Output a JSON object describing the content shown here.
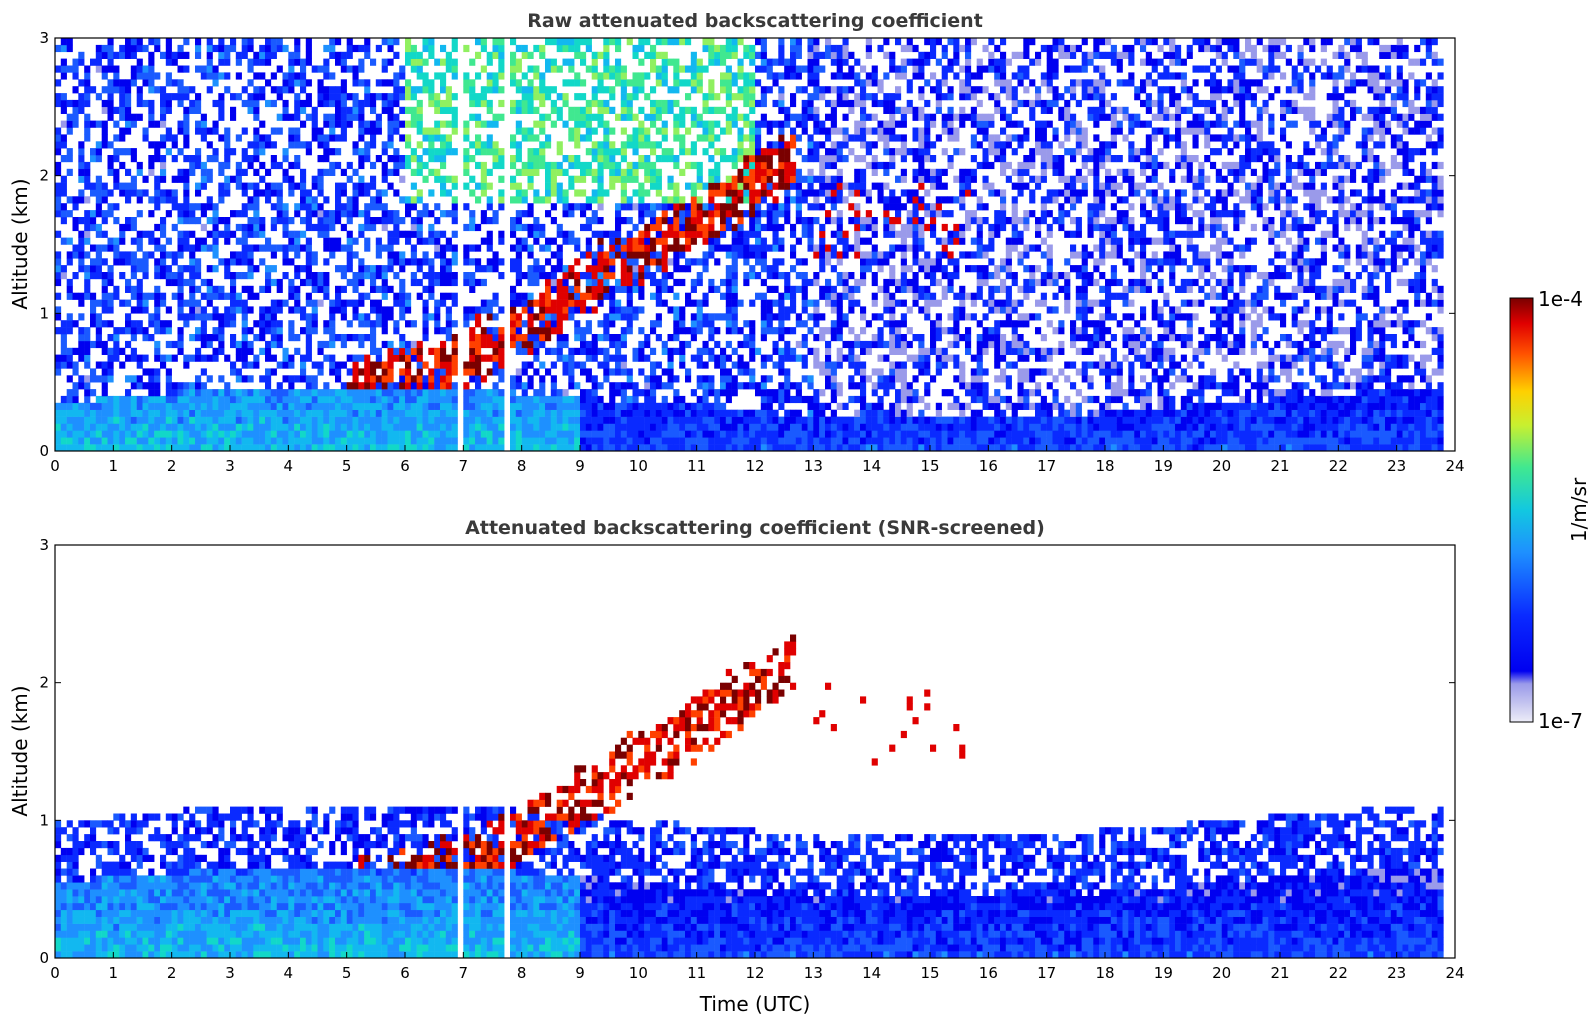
{
  "chart_data": [
    {
      "type": "heatmap",
      "title": "Raw attenuated backscattering coefficient",
      "xlabel": "",
      "ylabel": "Altitude (km)",
      "xlim": [
        0,
        24
      ],
      "ylim": [
        0,
        3
      ],
      "x_ticks": [
        "0",
        "1",
        "2",
        "3",
        "4",
        "5",
        "6",
        "7",
        "8",
        "9",
        "10",
        "11",
        "12",
        "13",
        "14",
        "15",
        "16",
        "17",
        "18",
        "19",
        "20",
        "21",
        "22",
        "23",
        "24"
      ],
      "y_ticks": [
        "0",
        "1",
        "2",
        "3"
      ],
      "data_gaps_hours": [
        [
          6.93,
          7.0
        ],
        [
          7.67,
          7.77
        ]
      ],
      "data_end_hour": 23.8,
      "colormap": "jet",
      "log_scale": true,
      "features": [
        {
          "name": "boundary layer",
          "description": "high backscatter below ~0.5 km all day"
        },
        {
          "name": "aerosol/cloud layer",
          "x_range": [
            5,
            12.7
          ],
          "altitude_km": [
            0.4,
            2.4
          ]
        },
        {
          "name": "elevated cloud specks",
          "x_range": [
            13,
            15.7
          ],
          "altitude_km": [
            1.4,
            2.0
          ]
        }
      ],
      "grid": false
    },
    {
      "type": "heatmap",
      "title": "Attenuated backscattering coefficient (SNR-screened)",
      "xlabel": "Time (UTC)",
      "ylabel": "Altitude (km)",
      "xlim": [
        0,
        24
      ],
      "ylim": [
        0,
        3
      ],
      "x_ticks": [
        "0",
        "1",
        "2",
        "3",
        "4",
        "5",
        "6",
        "7",
        "8",
        "9",
        "10",
        "11",
        "12",
        "13",
        "14",
        "15",
        "16",
        "17",
        "18",
        "19",
        "20",
        "21",
        "22",
        "23",
        "24"
      ],
      "y_ticks": [
        "0",
        "1",
        "2",
        "3"
      ],
      "data_gaps_hours": [
        [
          6.93,
          7.0
        ],
        [
          7.67,
          7.77
        ]
      ],
      "data_end_hour": 23.8,
      "colormap": "jet",
      "log_scale": true,
      "grid": false
    }
  ],
  "colorbar": {
    "max_label": "1e-4",
    "min_label": "1e-7",
    "unit_label": "1/m/sr",
    "colors": [
      "#ededf8",
      "#d4d4f2",
      "#b8b8ee",
      "#9a9aea",
      "#0000f0",
      "#0a2aff",
      "#1a5aff",
      "#1e90ff",
      "#12b8f0",
      "#12d8c8",
      "#40e890",
      "#90f060",
      "#e0f020",
      "#ffd000",
      "#ff9000",
      "#ff4000",
      "#e00000",
      "#7a0000"
    ]
  }
}
